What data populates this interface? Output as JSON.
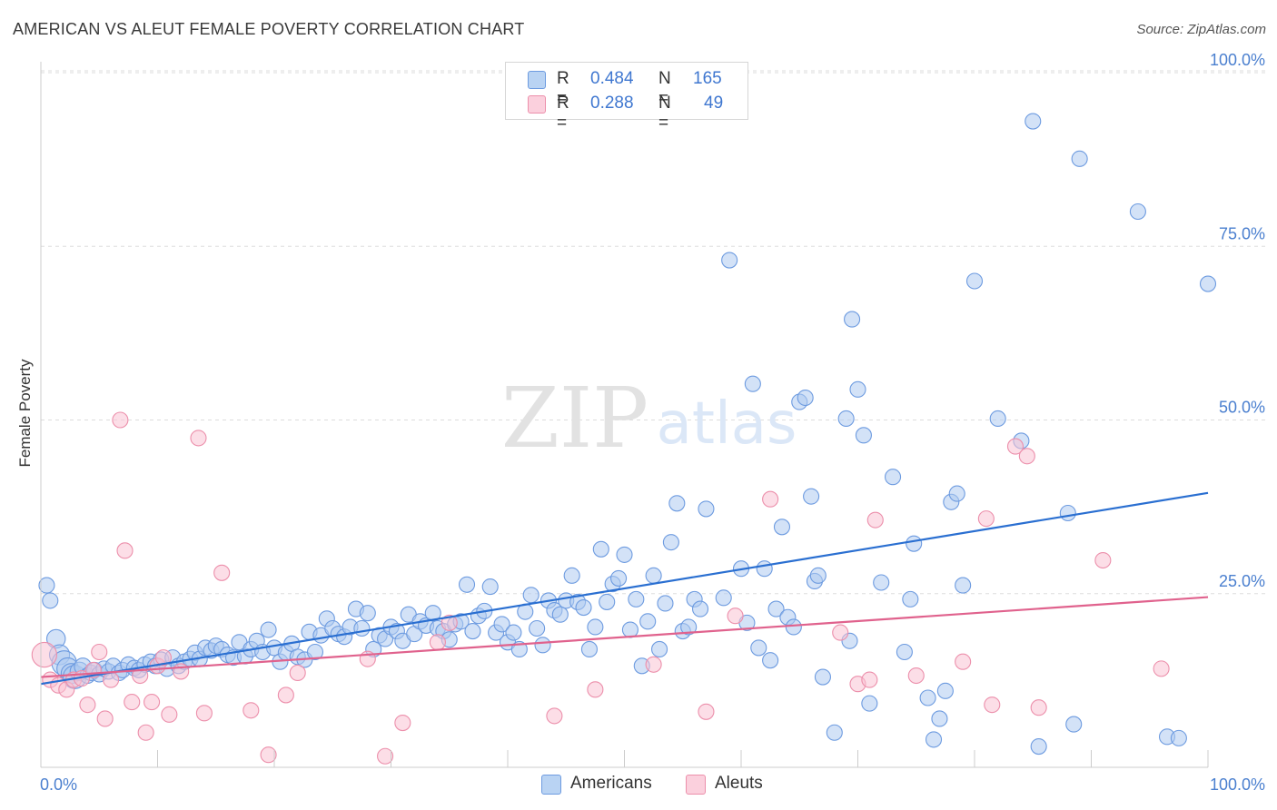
{
  "title": "AMERICAN VS ALEUT FEMALE POVERTY CORRELATION CHART",
  "source": "Source: ZipAtlas.com",
  "watermark": {
    "zip": "ZIP",
    "atlas": "atlas"
  },
  "legend": {
    "items": [
      {
        "r_label": "R =",
        "r_value": "0.484",
        "n_label": "N =",
        "n_value": "165"
      },
      {
        "r_label": "R =",
        "r_value": "0.288",
        "n_label": "N =",
        "n_value": "49"
      }
    ]
  },
  "bottom_legend": [
    "Americans",
    "Aleuts"
  ],
  "chart_data": {
    "type": "scatter",
    "title": "AMERICAN VS ALEUT FEMALE POVERTY CORRELATION CHART",
    "xlabel": "",
    "ylabel": "Female Poverty",
    "xlim": [
      0,
      100
    ],
    "ylim": [
      0,
      103
    ],
    "x_tick_labels": [
      "0.0%",
      "100.0%"
    ],
    "y_ticks": [
      25,
      50,
      75,
      100
    ],
    "y_tick_labels": [
      "25.0%",
      "50.0%",
      "75.0%",
      "100.0%"
    ],
    "grid": true,
    "legend_position": "top-center",
    "colors": {
      "americans_fill": "#aecbf0",
      "americans_stroke": "#6d9be0",
      "americans_line": "#2a6fd1",
      "aleuts_fill": "#f9c3d3",
      "aleuts_stroke": "#ec8fab",
      "aleuts_line": "#e0628d",
      "tick_text": "#4a7fcf",
      "grid": "#dddddd"
    },
    "series": [
      {
        "name": "Americans",
        "trend": {
          "x0": 0,
          "y0": 12.0,
          "x1": 100,
          "y1": 39.5
        },
        "points": [
          [
            0.5,
            26.2,
            1
          ],
          [
            0.8,
            24.0,
            1
          ],
          [
            1.3,
            18.5,
            1.2
          ],
          [
            1.6,
            16.2,
            1.3
          ],
          [
            2.0,
            15.0,
            1.6
          ],
          [
            2.3,
            14.2,
            1.4
          ],
          [
            2.6,
            13.5,
            1.3
          ],
          [
            2.9,
            13.0,
            1.5
          ],
          [
            3.3,
            13.8,
            1.2
          ],
          [
            3.6,
            14.5,
            1.1
          ],
          [
            4.0,
            13.2,
            1
          ],
          [
            4.3,
            13.6,
            1
          ],
          [
            4.6,
            14.0,
            1
          ],
          [
            5.0,
            13.4,
            1
          ],
          [
            5.4,
            14.2,
            1
          ],
          [
            5.8,
            13.8,
            1
          ],
          [
            6.2,
            14.6,
            1
          ],
          [
            6.7,
            13.6,
            1
          ],
          [
            7.0,
            14.0,
            1
          ],
          [
            7.5,
            14.8,
            1
          ],
          [
            8.0,
            14.3,
            1
          ],
          [
            8.4,
            14.0,
            1
          ],
          [
            8.9,
            14.8,
            1
          ],
          [
            9.4,
            15.2,
            1
          ],
          [
            9.8,
            14.6,
            1
          ],
          [
            10.3,
            15.5,
            1
          ],
          [
            10.8,
            14.2,
            1
          ],
          [
            11.3,
            15.8,
            1
          ],
          [
            11.8,
            14.6,
            1
          ],
          [
            12.3,
            15.2,
            1
          ],
          [
            12.8,
            15.6,
            1
          ],
          [
            13.2,
            16.5,
            1
          ],
          [
            13.6,
            15.6,
            1
          ],
          [
            14.1,
            17.2,
            1
          ],
          [
            14.6,
            16.8,
            1
          ],
          [
            15.0,
            17.5,
            1
          ],
          [
            15.5,
            17.0,
            1
          ],
          [
            16.0,
            16.2,
            1
          ],
          [
            16.5,
            15.8,
            1
          ],
          [
            17.0,
            18.0,
            1
          ],
          [
            17.5,
            16.0,
            1
          ],
          [
            18.0,
            17.0,
            1
          ],
          [
            18.5,
            18.2,
            1
          ],
          [
            19.0,
            16.6,
            1
          ],
          [
            19.5,
            19.8,
            1
          ],
          [
            20.0,
            17.2,
            1
          ],
          [
            20.5,
            15.2,
            1
          ],
          [
            21.0,
            16.5,
            1
          ],
          [
            21.5,
            17.8,
            1
          ],
          [
            22.0,
            15.9,
            1
          ],
          [
            22.6,
            15.5,
            1
          ],
          [
            23.0,
            19.5,
            1
          ],
          [
            23.5,
            16.6,
            1
          ],
          [
            24.0,
            19.0,
            1
          ],
          [
            24.5,
            21.4,
            1
          ],
          [
            25.0,
            20.0,
            1
          ],
          [
            25.5,
            19.2,
            1
          ],
          [
            26.0,
            18.8,
            1
          ],
          [
            26.5,
            20.2,
            1
          ],
          [
            27.0,
            22.8,
            1
          ],
          [
            27.5,
            20.0,
            1
          ],
          [
            28.0,
            22.2,
            1
          ],
          [
            28.5,
            17.0,
            1
          ],
          [
            29.0,
            19.0,
            1
          ],
          [
            29.5,
            18.5,
            1
          ],
          [
            30.0,
            20.2,
            1
          ],
          [
            30.5,
            19.6,
            1
          ],
          [
            31.0,
            18.2,
            1
          ],
          [
            31.5,
            22.0,
            1
          ],
          [
            32.0,
            19.2,
            1
          ],
          [
            32.5,
            21.0,
            1
          ],
          [
            33.0,
            20.4,
            1
          ],
          [
            33.6,
            22.2,
            1
          ],
          [
            34.0,
            20.0,
            1
          ],
          [
            34.5,
            19.6,
            1
          ],
          [
            35.0,
            18.4,
            1
          ],
          [
            35.5,
            20.6,
            1
          ],
          [
            36.0,
            21.0,
            1
          ],
          [
            36.5,
            26.3,
            1
          ],
          [
            37.0,
            19.6,
            1
          ],
          [
            37.5,
            21.8,
            1
          ],
          [
            38.0,
            22.5,
            1
          ],
          [
            38.5,
            26.0,
            1
          ],
          [
            39.0,
            19.4,
            1
          ],
          [
            39.5,
            20.6,
            1
          ],
          [
            40.0,
            18.0,
            1
          ],
          [
            40.5,
            19.4,
            1
          ],
          [
            41.0,
            17.0,
            1
          ],
          [
            41.5,
            22.4,
            1
          ],
          [
            42.0,
            24.8,
            1
          ],
          [
            42.5,
            20.0,
            1
          ],
          [
            43.0,
            17.6,
            1
          ],
          [
            43.5,
            24.0,
            1
          ],
          [
            44.0,
            22.6,
            1
          ],
          [
            44.5,
            22.0,
            1
          ],
          [
            45.0,
            24.0,
            1
          ],
          [
            45.5,
            27.6,
            1
          ],
          [
            46.0,
            23.8,
            1
          ],
          [
            46.5,
            23.0,
            1
          ],
          [
            47.0,
            17.0,
            1
          ],
          [
            47.5,
            20.2,
            1
          ],
          [
            48.0,
            31.4,
            1
          ],
          [
            48.5,
            23.8,
            1
          ],
          [
            49.0,
            26.4,
            1
          ],
          [
            49.5,
            27.2,
            1
          ],
          [
            50.0,
            30.6,
            1
          ],
          [
            50.5,
            19.8,
            1
          ],
          [
            51.0,
            24.2,
            1
          ],
          [
            51.5,
            14.6,
            1
          ],
          [
            52.0,
            21.0,
            1
          ],
          [
            52.5,
            27.6,
            1
          ],
          [
            53.0,
            17.0,
            1
          ],
          [
            53.5,
            23.6,
            1
          ],
          [
            54.0,
            32.4,
            1
          ],
          [
            54.5,
            38.0,
            1
          ],
          [
            55.0,
            19.6,
            1
          ],
          [
            55.5,
            20.2,
            1
          ],
          [
            56.0,
            24.2,
            1
          ],
          [
            56.5,
            22.8,
            1
          ],
          [
            57.0,
            37.2,
            1
          ],
          [
            58.5,
            24.4,
            1
          ],
          [
            59.0,
            73.0,
            1
          ],
          [
            60.0,
            28.6,
            1
          ],
          [
            60.5,
            20.8,
            1
          ],
          [
            61.0,
            55.2,
            1
          ],
          [
            61.5,
            17.2,
            1
          ],
          [
            62.0,
            28.6,
            1
          ],
          [
            62.5,
            15.4,
            1
          ],
          [
            63.0,
            22.8,
            1
          ],
          [
            63.5,
            34.6,
            1
          ],
          [
            64.0,
            21.6,
            1
          ],
          [
            64.5,
            20.2,
            1
          ],
          [
            65.0,
            52.6,
            1
          ],
          [
            65.5,
            53.2,
            1
          ],
          [
            66.0,
            39.0,
            1
          ],
          [
            66.3,
            26.8,
            1
          ],
          [
            66.6,
            27.6,
            1
          ],
          [
            67.0,
            13.0,
            1
          ],
          [
            68.0,
            5.0,
            1
          ],
          [
            69.0,
            50.2,
            1
          ],
          [
            69.3,
            18.2,
            1
          ],
          [
            69.5,
            64.5,
            1
          ],
          [
            70.0,
            54.4,
            1
          ],
          [
            70.5,
            47.8,
            1
          ],
          [
            71.0,
            9.2,
            1
          ],
          [
            72.0,
            26.6,
            1
          ],
          [
            73.0,
            41.8,
            1
          ],
          [
            74.0,
            16.6,
            1
          ],
          [
            74.5,
            24.2,
            1
          ],
          [
            74.8,
            32.2,
            1
          ],
          [
            76.0,
            10.0,
            1
          ],
          [
            76.5,
            4.0,
            1
          ],
          [
            77.0,
            7.0,
            1
          ],
          [
            77.5,
            11.0,
            1
          ],
          [
            78.0,
            38.2,
            1
          ],
          [
            78.5,
            39.4,
            1
          ],
          [
            79.0,
            26.2,
            1
          ],
          [
            80.0,
            70.0,
            1
          ],
          [
            82.0,
            50.2,
            1
          ],
          [
            84.0,
            47.0,
            1
          ],
          [
            85.0,
            93.0,
            1
          ],
          [
            85.5,
            3.0,
            1
          ],
          [
            88.0,
            36.6,
            1
          ],
          [
            88.5,
            6.2,
            1
          ],
          [
            89.0,
            87.6,
            1
          ],
          [
            94.0,
            80.0,
            1
          ],
          [
            96.5,
            4.4,
            1
          ],
          [
            97.5,
            4.2,
            1
          ],
          [
            100.0,
            69.6,
            1
          ]
        ]
      },
      {
        "name": "Aleuts",
        "trend": {
          "x0": 0,
          "y0": 13.0,
          "x1": 100,
          "y1": 24.5
        },
        "points": [
          [
            0.3,
            16.2,
            1.6
          ],
          [
            0.8,
            12.6,
            1
          ],
          [
            1.5,
            11.8,
            1
          ],
          [
            2.2,
            11.2,
            1
          ],
          [
            2.8,
            12.6,
            1
          ],
          [
            3.5,
            12.8,
            1
          ],
          [
            4.0,
            9.0,
            1
          ],
          [
            4.5,
            14.0,
            1
          ],
          [
            5.0,
            16.6,
            1
          ],
          [
            5.5,
            7.0,
            1
          ],
          [
            6.0,
            12.6,
            1
          ],
          [
            6.8,
            50.0,
            1
          ],
          [
            7.2,
            31.2,
            1
          ],
          [
            7.8,
            9.4,
            1
          ],
          [
            8.5,
            13.2,
            1
          ],
          [
            9.0,
            5.0,
            1
          ],
          [
            9.5,
            9.4,
            1
          ],
          [
            10.0,
            14.6,
            1
          ],
          [
            10.5,
            15.8,
            1
          ],
          [
            11.0,
            7.6,
            1
          ],
          [
            12.0,
            13.8,
            1
          ],
          [
            13.5,
            47.4,
            1
          ],
          [
            14.0,
            7.8,
            1
          ],
          [
            15.5,
            28.0,
            1
          ],
          [
            18.0,
            8.2,
            1
          ],
          [
            19.5,
            1.8,
            1
          ],
          [
            21.0,
            10.4,
            1
          ],
          [
            22.0,
            13.6,
            1
          ],
          [
            28.0,
            15.6,
            1
          ],
          [
            29.5,
            1.6,
            1
          ],
          [
            31.0,
            6.4,
            1
          ],
          [
            34.0,
            18.0,
            1
          ],
          [
            35.0,
            20.8,
            1
          ],
          [
            44.0,
            7.4,
            1
          ],
          [
            47.5,
            11.2,
            1
          ],
          [
            52.5,
            14.8,
            1
          ],
          [
            57.0,
            8.0,
            1
          ],
          [
            59.5,
            21.8,
            1
          ],
          [
            62.5,
            38.6,
            1
          ],
          [
            68.5,
            19.4,
            1
          ],
          [
            70.0,
            12.0,
            1
          ],
          [
            71.0,
            12.6,
            1
          ],
          [
            71.5,
            35.6,
            1
          ],
          [
            75.0,
            13.2,
            1
          ],
          [
            79.0,
            15.2,
            1
          ],
          [
            81.0,
            35.8,
            1
          ],
          [
            81.5,
            9.0,
            1
          ],
          [
            83.5,
            46.2,
            1
          ],
          [
            84.5,
            44.8,
            1
          ],
          [
            85.5,
            8.6,
            1
          ],
          [
            91.0,
            29.8,
            1
          ],
          [
            96.0,
            14.2,
            1
          ]
        ]
      }
    ]
  }
}
